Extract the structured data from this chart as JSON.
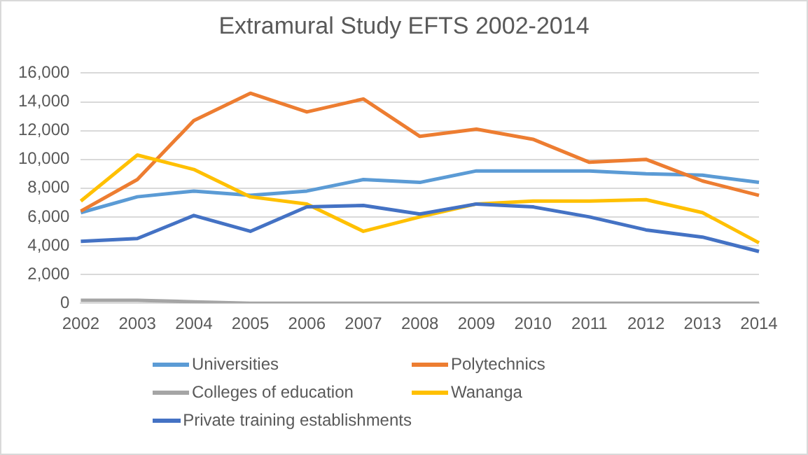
{
  "chart_data": {
    "type": "line",
    "title": "Extramural Study EFTS 2002-2014",
    "categories": [
      "2002",
      "2003",
      "2004",
      "2005",
      "2006",
      "2007",
      "2008",
      "2009",
      "2010",
      "2011",
      "2012",
      "2013",
      "2014"
    ],
    "series": [
      {
        "name": "Universities",
        "color": "#5b9bd5",
        "values": [
          6300,
          7400,
          7800,
          7500,
          7800,
          8600,
          8400,
          9200,
          9200,
          9200,
          9000,
          8900,
          8400
        ]
      },
      {
        "name": "Polytechnics",
        "color": "#ed7d31",
        "values": [
          6400,
          8600,
          12700,
          14600,
          13300,
          14200,
          11600,
          12100,
          11400,
          9800,
          10000,
          8500,
          7500
        ]
      },
      {
        "name": "Colleges of education",
        "color": "#a5a5a5",
        "values": [
          200,
          200,
          100,
          0,
          0,
          0,
          0,
          0,
          0,
          0,
          0,
          0,
          0
        ]
      },
      {
        "name": "Wananga",
        "color": "#ffc000",
        "values": [
          7100,
          10300,
          9300,
          7400,
          6900,
          5000,
          6000,
          6900,
          7100,
          7100,
          7200,
          6300,
          4200
        ]
      },
      {
        "name": "Private training establishments",
        "color": "#4472c4",
        "values": [
          4300,
          4500,
          6100,
          5000,
          6700,
          6800,
          6200,
          6900,
          6700,
          6000,
          5100,
          4600,
          3600
        ]
      }
    ],
    "ylim": [
      0,
      16000
    ],
    "yticks": [
      {
        "value": 0,
        "label": "0"
      },
      {
        "value": 2000,
        "label": "2,000"
      },
      {
        "value": 4000,
        "label": "4,000"
      },
      {
        "value": 6000,
        "label": "6,000"
      },
      {
        "value": 8000,
        "label": "8,000"
      },
      {
        "value": 10000,
        "label": "10,000"
      },
      {
        "value": 12000,
        "label": "12,000"
      },
      {
        "value": 14000,
        "label": "14,000"
      },
      {
        "value": 16000,
        "label": "16,000"
      }
    ],
    "grid": "y",
    "legend": "bottom",
    "marker": "none",
    "line_style": "solid"
  }
}
